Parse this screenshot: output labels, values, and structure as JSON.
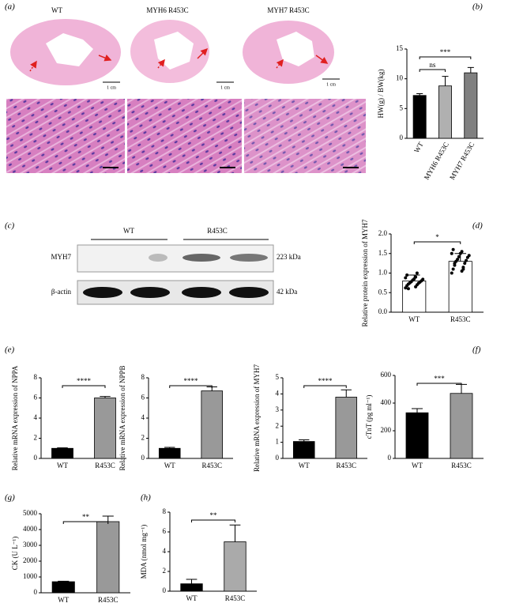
{
  "histology": {
    "panel_label": "(a)",
    "titles": [
      "WT",
      "MYH6 R453C",
      "MYH7 R453C"
    ],
    "scale_bar_label": "1 cm"
  },
  "western_blot": {
    "panel_label": "(c)",
    "groups": [
      "WT",
      "R453C"
    ],
    "rows": [
      {
        "label": "MYH7",
        "size": "223 kDa"
      },
      {
        "label": "β-actin",
        "size": "42 kDa"
      }
    ]
  },
  "chart_data": [
    {
      "type": "bar",
      "panel_label": "(b)",
      "ylabel": "HW(g) / BW(kg)",
      "categories": [
        "WT",
        "MYH6 R453C",
        "MYH7 R453C"
      ],
      "values": [
        7.2,
        8.8,
        11.0
      ],
      "errors": [
        0.3,
        1.6,
        0.9
      ],
      "colors": [
        "#000000",
        "#b0b0b0",
        "#808080"
      ],
      "ylim": [
        0,
        15
      ],
      "yticks": [
        0,
        5,
        10,
        15
      ],
      "significance": [
        "ns",
        "***"
      ],
      "rotate_x_labels": true
    },
    {
      "type": "bar",
      "panel_label": "(d)",
      "ylabel": "Relative protein expression of MYH7",
      "categories": [
        "WT",
        "R453C"
      ],
      "values": [
        0.8,
        1.3
      ],
      "errors": [
        0.15,
        0.2
      ],
      "colors": [
        "#ffffff",
        "#ffffff"
      ],
      "ylim": [
        0,
        2
      ],
      "yticks": [
        {
          "value": 0,
          "label": "0.0"
        },
        {
          "value": 0.5,
          "label": "0.5"
        },
        {
          "value": 1,
          "label": "1.0"
        },
        {
          "value": 1.5,
          "label": "1.5"
        },
        {
          "value": 2,
          "label": "2.0"
        }
      ],
      "points": [
        [
          0.62,
          0.65,
          0.68,
          0.7,
          0.72,
          0.74,
          0.75,
          0.77,
          0.78,
          0.8,
          0.82,
          0.84,
          0.85,
          0.88,
          0.9,
          0.95,
          1.0,
          0.6
        ],
        [
          1.0,
          1.05,
          1.1,
          1.15,
          1.2,
          1.25,
          1.3,
          1.32,
          1.35,
          1.4,
          1.42,
          1.45,
          1.5,
          1.5,
          1.55,
          1.6,
          1.1,
          1.25
        ]
      ],
      "significance": [
        "*"
      ]
    },
    {
      "type": "bar",
      "panel_label": "(e)",
      "ylabel": "Relative mRNA expression of NPPA",
      "categories": [
        "WT",
        "R453C"
      ],
      "values": [
        1.0,
        6.0
      ],
      "errors": [
        0.05,
        0.15
      ],
      "colors": [
        "#000000",
        "#999999"
      ],
      "ylim": [
        0,
        8
      ],
      "yticks": [
        0,
        2,
        4,
        6,
        8
      ],
      "significance": [
        "****"
      ]
    },
    {
      "type": "bar",
      "ylabel": "Relative mRNA expression of NPPB",
      "categories": [
        "WT",
        "R453C"
      ],
      "values": [
        1.0,
        6.7
      ],
      "errors": [
        0.1,
        0.4
      ],
      "colors": [
        "#000000",
        "#999999"
      ],
      "ylim": [
        0,
        8
      ],
      "yticks": [
        0,
        2,
        4,
        6,
        8
      ],
      "significance": [
        "****"
      ]
    },
    {
      "type": "bar",
      "ylabel": "Relative mRNA expression of MYH7",
      "categories": [
        "WT",
        "R453C"
      ],
      "values": [
        1.05,
        3.8
      ],
      "errors": [
        0.1,
        0.45
      ],
      "colors": [
        "#000000",
        "#999999"
      ],
      "ylim": [
        0,
        5
      ],
      "yticks": [
        0,
        1,
        2,
        3,
        4,
        5
      ],
      "significance": [
        "****"
      ]
    },
    {
      "type": "bar",
      "panel_label": "(f)",
      "ylabel": "cTnT (pg ml⁻¹)",
      "categories": [
        "WT",
        "R453C"
      ],
      "values": [
        330,
        470
      ],
      "errors": [
        30,
        65
      ],
      "colors": [
        "#000000",
        "#999999"
      ],
      "ylim": [
        0,
        600
      ],
      "yticks": [
        0,
        200,
        400,
        600
      ],
      "significance": [
        "***"
      ]
    },
    {
      "type": "bar",
      "panel_label": "(g)",
      "ylabel": "CK (U L⁻¹)",
      "categories": [
        "WT",
        "R453C"
      ],
      "values": [
        700,
        4500
      ],
      "errors": [
        30,
        350
      ],
      "colors": [
        "#000000",
        "#999999"
      ],
      "ylim": [
        0,
        5000
      ],
      "yticks": [
        0,
        1000,
        2000,
        3000,
        4000,
        5000
      ],
      "significance": [
        "**"
      ]
    },
    {
      "type": "bar",
      "panel_label": "(h)",
      "ylabel": "MDA (nmol mg⁻¹)",
      "categories": [
        "WT",
        "R453C"
      ],
      "values": [
        0.75,
        5.0
      ],
      "errors": [
        0.45,
        1.7
      ],
      "colors": [
        "#000000",
        "#aaaaaa"
      ],
      "ylim": [
        0,
        8
      ],
      "yticks": [
        0,
        2,
        4,
        6,
        8
      ],
      "significance": [
        "**"
      ]
    }
  ]
}
